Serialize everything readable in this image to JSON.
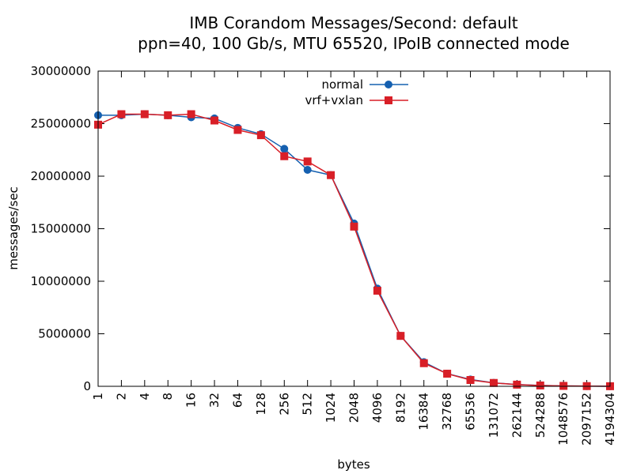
{
  "chart_data": {
    "type": "line",
    "title_line1": "IMB Corandom Messages/Second: default",
    "title_line2": "ppn=40, 100 Gb/s, MTU 65520, IPoIB connected mode",
    "xlabel": "bytes",
    "ylabel": "messages/sec",
    "ylim": [
      0,
      30000000
    ],
    "yticks": [
      "0",
      "5000000",
      "10000000",
      "15000000",
      "20000000",
      "25000000",
      "30000000"
    ],
    "ytick_values": [
      0,
      5000000,
      10000000,
      15000000,
      20000000,
      25000000,
      30000000
    ],
    "categories": [
      "1",
      "2",
      "4",
      "8",
      "16",
      "32",
      "64",
      "128",
      "256",
      "512",
      "1024",
      "2048",
      "4096",
      "8192",
      "16384",
      "32768",
      "65536",
      "131072",
      "262144",
      "524288",
      "1048576",
      "2097152",
      "4194304"
    ],
    "legend_position": "top-center",
    "grid": false,
    "series": [
      {
        "name": "normal",
        "color": "#1560b0",
        "marker": "circle",
        "values": [
          25800000,
          25800000,
          25900000,
          25800000,
          25600000,
          25500000,
          24600000,
          24000000,
          22600000,
          20600000,
          20100000,
          15500000,
          9300000,
          4800000,
          2300000,
          1200000,
          650000,
          330000,
          170000,
          85000,
          40000,
          20000,
          10000
        ]
      },
      {
        "name": "vrf+vxlan",
        "color": "#d81f27",
        "marker": "square",
        "values": [
          24900000,
          25900000,
          25900000,
          25800000,
          25900000,
          25300000,
          24400000,
          23900000,
          21900000,
          21400000,
          20100000,
          15200000,
          9100000,
          4800000,
          2200000,
          1200000,
          600000,
          320000,
          160000,
          80000,
          40000,
          20000,
          10000
        ]
      }
    ]
  }
}
